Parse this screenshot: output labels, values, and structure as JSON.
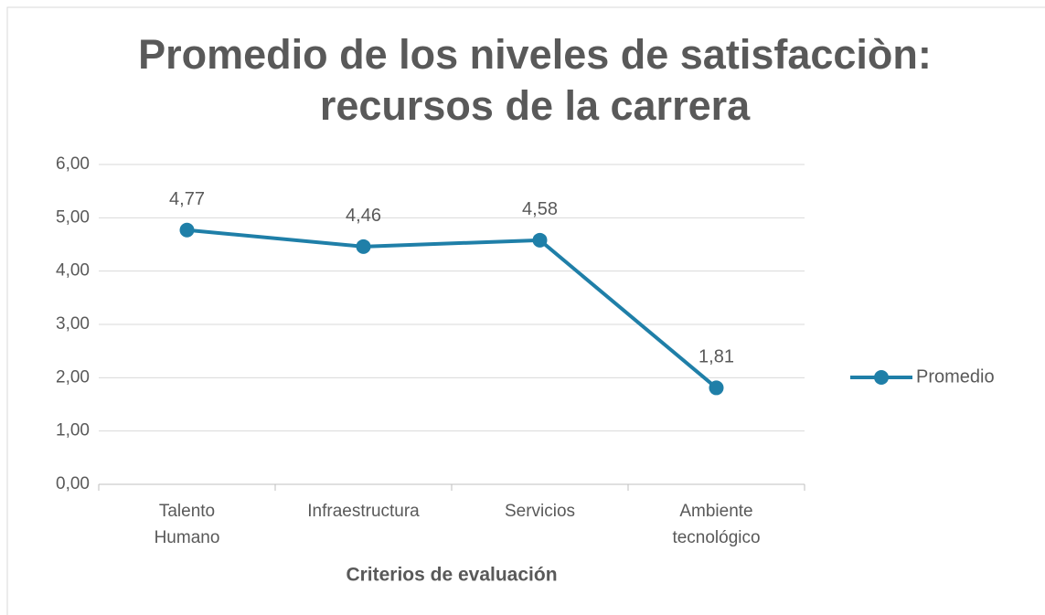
{
  "chart_data": {
    "type": "line",
    "title": "Promedio de los niveles de satisfacciòn: recursos de la carrera",
    "x_label": "Criterios de evaluación",
    "categories": [
      "Talento Humano",
      "Infraestructura",
      "Servicios",
      "Ambiente tecnológico"
    ],
    "series": [
      {
        "name": "Promedio",
        "color": "#1f7fa8",
        "values": [
          4.77,
          4.46,
          4.58,
          1.81
        ],
        "value_labels": [
          "4,77",
          "4,46",
          "4,58",
          "1,81"
        ]
      }
    ],
    "ylim": [
      0,
      6
    ],
    "yticks": [
      {
        "value": 0,
        "label": "0,00"
      },
      {
        "value": 1,
        "label": "1,00"
      },
      {
        "value": 2,
        "label": "2,00"
      },
      {
        "value": 3,
        "label": "3,00"
      },
      {
        "value": 4,
        "label": "4,00"
      },
      {
        "value": 5,
        "label": "5,00"
      },
      {
        "value": 6,
        "label": "6,00"
      }
    ],
    "grid": true,
    "legend": "right"
  }
}
